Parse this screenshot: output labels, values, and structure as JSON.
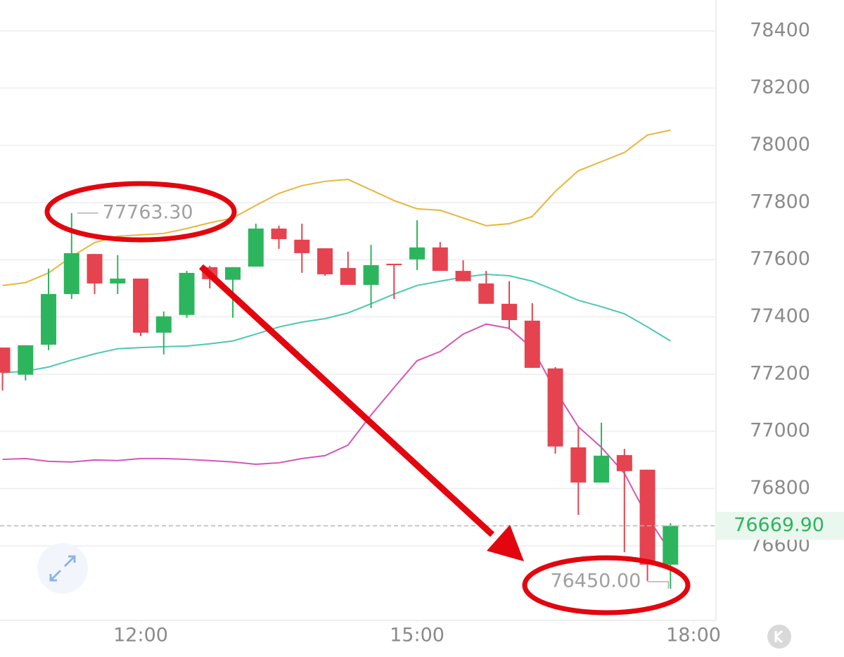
{
  "chart_data": {
    "type": "candlestick",
    "x": [
      10.5,
      10.75,
      11,
      11.25,
      11.5,
      11.75,
      12,
      12.25,
      12.5,
      12.75,
      13,
      13.25,
      13.5,
      13.75,
      14,
      14.25,
      14.5,
      14.75,
      15,
      15.25,
      15.5,
      15.75,
      16,
      16.25,
      16.5,
      16.75,
      17,
      17.25,
      17.5,
      17.75
    ],
    "open": [
      77293,
      77198,
      77303,
      77480,
      77620,
      77517,
      77534,
      77345,
      77407,
      77574,
      77530,
      77576,
      77709,
      77670,
      77640,
      77571,
      77512,
      77586,
      77601,
      77643,
      77561,
      77517,
      77446,
      77387,
      77220,
      76944,
      76821,
      76917,
      76866,
      76534
    ],
    "high": [
      77293,
      77301,
      77569,
      77763.3,
      77620,
      77616,
      77534,
      77419,
      77561,
      77579,
      77574,
      77726,
      77719,
      77726,
      77640,
      77628,
      77652,
      77586,
      77738,
      77662,
      77598,
      77561,
      77525,
      77448,
      77225,
      77013,
      77030,
      76939,
      76866,
      76679
    ],
    "low": [
      77143,
      77178,
      77284,
      77463,
      77480,
      77480,
      77333,
      77269,
      77397,
      77500,
      77397,
      77576,
      77638,
      77554,
      77544,
      77512,
      77431,
      77463,
      77564,
      77561,
      77525,
      77446,
      77357,
      77222,
      76922,
      76708,
      76821,
      76578,
      76477,
      76450
    ],
    "close": [
      77205,
      77301,
      77480,
      77623,
      77517,
      77534,
      77345,
      77402,
      77554,
      77532,
      77574,
      77709,
      77672,
      77623,
      77549,
      77512,
      77581,
      77581,
      77643,
      77561,
      77525,
      77446,
      77389,
      77222,
      76947,
      76821,
      76915,
      76861,
      76534,
      76669.9
    ],
    "up_color": "#2db55d",
    "down_color": "#e5434f",
    "lines": [
      {
        "color": "#e8b63a",
        "values": [
          77510,
          77520,
          77554,
          77611,
          77660,
          77682,
          77687,
          77692,
          77709,
          77729,
          77746,
          77790,
          77832,
          77859,
          77874,
          77881,
          77844,
          77807,
          77778,
          77773,
          77746,
          77719,
          77726,
          77751,
          77839,
          77911,
          77943,
          77975,
          78036,
          78053
        ]
      },
      {
        "color": "#4cc9b0",
        "values": [
          77205,
          77210,
          77225,
          77249,
          77271,
          77289,
          77293,
          77296,
          77298,
          77306,
          77316,
          77340,
          77365,
          77382,
          77394,
          77414,
          77446,
          77480,
          77510,
          77525,
          77539,
          77549,
          77544,
          77525,
          77493,
          77458,
          77436,
          77411,
          77365,
          77316
        ]
      },
      {
        "color": "#d455b8",
        "values": [
          76902,
          76905,
          76895,
          76893,
          76900,
          76898,
          76905,
          76905,
          76902,
          76898,
          76893,
          76885,
          76890,
          76905,
          76915,
          76952,
          77057,
          77153,
          77247,
          77279,
          77340,
          77375,
          77360,
          77291,
          77143,
          77016,
          76944,
          76853,
          76701,
          76578
        ]
      }
    ],
    "xlim": [
      10.473,
      18.244
    ],
    "xticks": [
      {
        "value": 12,
        "label": "12:00"
      },
      {
        "value": 15,
        "label": "15:00"
      },
      {
        "value": 18,
        "label": "18:00"
      }
    ],
    "ylim": [
      76339,
      78508
    ],
    "yticks": [
      76600,
      76800,
      77000,
      77200,
      77400,
      77600,
      77800,
      78000,
      78200,
      78400
    ],
    "grid": true,
    "high_label": "77763.30",
    "low_label": "76450.00",
    "last_price": 76669.9,
    "last_price_label": "76669.90"
  }
}
